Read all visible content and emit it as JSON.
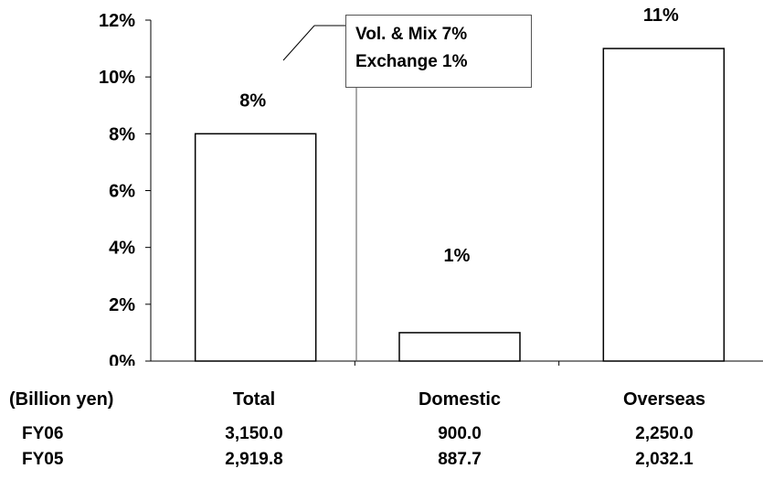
{
  "chart_data": {
    "type": "bar",
    "categories": [
      "Total",
      "Domestic",
      "Overseas"
    ],
    "values": [
      8,
      1,
      11
    ],
    "value_labels": [
      "8%",
      "1%",
      "11%"
    ],
    "ylim": [
      0,
      12
    ],
    "yticks": [
      "0%",
      "2%",
      "4%",
      "6%",
      "8%",
      "10%",
      "12%"
    ],
    "grid": false,
    "legend": "none",
    "annotation": {
      "lines": [
        "Vol. & Mix  7%",
        "Exchange  1%"
      ]
    }
  },
  "table": {
    "unit_label": "(Billion yen)",
    "rows": [
      {
        "label": "FY06",
        "values": [
          "3,150.0",
          "900.0",
          "2,250.0"
        ]
      },
      {
        "label": "FY05",
        "values": [
          "2,919.8",
          "887.7",
          "2,032.1"
        ]
      }
    ]
  }
}
